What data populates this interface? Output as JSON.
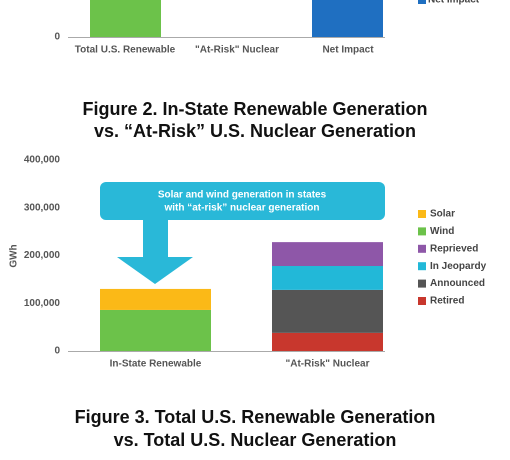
{
  "chart_data": [
    {
      "type": "bar",
      "categories": [
        "Total U.S. Renewable",
        "\"At-Risk\" Nuclear",
        "Net Impact"
      ],
      "yticks": [
        0
      ],
      "legend": [
        {
          "name": "Net Impact",
          "color": "#1f6fc1"
        }
      ]
    },
    {
      "type": "stacked_bar",
      "title": [
        "Figure 2. In-State Renewable Generation",
        "vs. “At-Risk” U.S. Nuclear Generation"
      ],
      "ylabel": "GWh",
      "categories": [
        "In-State Renewable",
        "\"At-Risk\" Nuclear"
      ],
      "ylim": [
        0,
        400000
      ],
      "yticks": [
        {
          "value": 0,
          "label": "0"
        },
        {
          "value": 100000,
          "label": "100,000"
        },
        {
          "value": 200000,
          "label": "200,000"
        },
        {
          "value": 300000,
          "label": "300,000"
        },
        {
          "value": 400000,
          "label": "400,000"
        }
      ],
      "annotation": [
        "Solar and wind generation in states",
        "with “at-risk” nuclear generation"
      ],
      "series": [
        {
          "name": "Solar",
          "color": "#fbb917",
          "values": [
            44000,
            null
          ]
        },
        {
          "name": "Wind",
          "color": "#6cc24a",
          "values": [
            86000,
            null
          ]
        },
        {
          "name": "Reprieved",
          "color": "#8e57a8",
          "values": [
            null,
            50000
          ]
        },
        {
          "name": "In Jeopardy",
          "color": "#22b8d8",
          "values": [
            null,
            50000
          ]
        },
        {
          "name": "Announced",
          "color": "#555555",
          "values": [
            null,
            90000
          ]
        },
        {
          "name": "Retired",
          "color": "#c8372d",
          "values": [
            null,
            38000
          ]
        }
      ]
    }
  ],
  "next_figure_title": [
    "Figure 3. Total U.S. Renewable Generation",
    "vs. Total U.S. Nuclear Generation"
  ]
}
